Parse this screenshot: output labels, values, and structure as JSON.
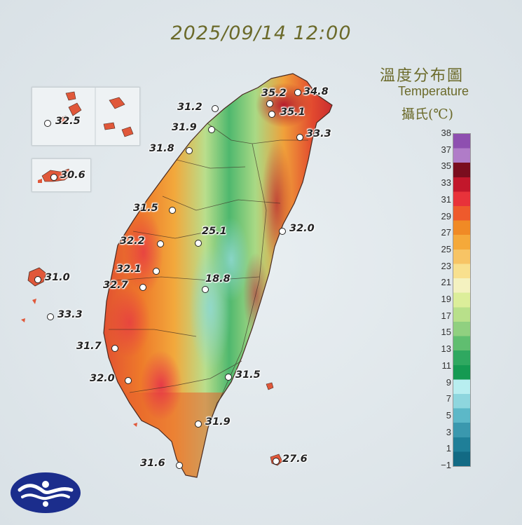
{
  "datetime": "2025/09/14 12:00",
  "legend": {
    "title_zh": "溫度分布圖",
    "title_en": "Temperature",
    "unit": "攝氏(℃)",
    "ticks": [
      "38",
      "37",
      "35",
      "33",
      "31",
      "29",
      "27",
      "25",
      "23",
      "21",
      "19",
      "17",
      "15",
      "13",
      "11",
      "9",
      "7",
      "5",
      "3",
      "1",
      "−1"
    ],
    "colors": [
      "#8e4fb0",
      "#b07cc8",
      "#7a0d1e",
      "#c2172b",
      "#e8323a",
      "#ee5a2c",
      "#f08a25",
      "#f5a93a",
      "#f7c465",
      "#f8e08e",
      "#f4f2c0",
      "#dcee9a",
      "#b8e08a",
      "#90d080",
      "#60be70",
      "#2fa860",
      "#159a52",
      "#b8eef0",
      "#8ed6de",
      "#5cb8c8",
      "#3a98ae",
      "#1f7f98",
      "#126a84"
    ]
  },
  "stations": [
    {
      "id": "keelung-nw",
      "value": "35.2"
    },
    {
      "id": "keelung",
      "value": "34.8"
    },
    {
      "id": "taipei",
      "value": "35.1"
    },
    {
      "id": "yilan-ne",
      "value": "33.3"
    },
    {
      "id": "tamsui",
      "value": "31.2"
    },
    {
      "id": "taoyuan",
      "value": "31.9"
    },
    {
      "id": "hsinchu",
      "value": "31.8"
    },
    {
      "id": "taichung",
      "value": "31.5"
    },
    {
      "id": "sunmoon",
      "value": "25.1"
    },
    {
      "id": "hualien",
      "value": "32.0"
    },
    {
      "id": "changhua",
      "value": "32.2"
    },
    {
      "id": "chiayi-n",
      "value": "32.1"
    },
    {
      "id": "chiayi",
      "value": "32.7"
    },
    {
      "id": "alishan",
      "value": "18.8"
    },
    {
      "id": "penghu",
      "value": "31.0"
    },
    {
      "id": "penghu-s",
      "value": "33.3"
    },
    {
      "id": "tainan",
      "value": "31.7"
    },
    {
      "id": "kaohsiung",
      "value": "32.0"
    },
    {
      "id": "taitung-n",
      "value": "31.5"
    },
    {
      "id": "taitung",
      "value": "31.9"
    },
    {
      "id": "hengchun",
      "value": "31.6"
    },
    {
      "id": "lanyu",
      "value": "27.6"
    },
    {
      "id": "matsu",
      "value": "32.5"
    },
    {
      "id": "kinmen",
      "value": "30.6"
    }
  ]
}
